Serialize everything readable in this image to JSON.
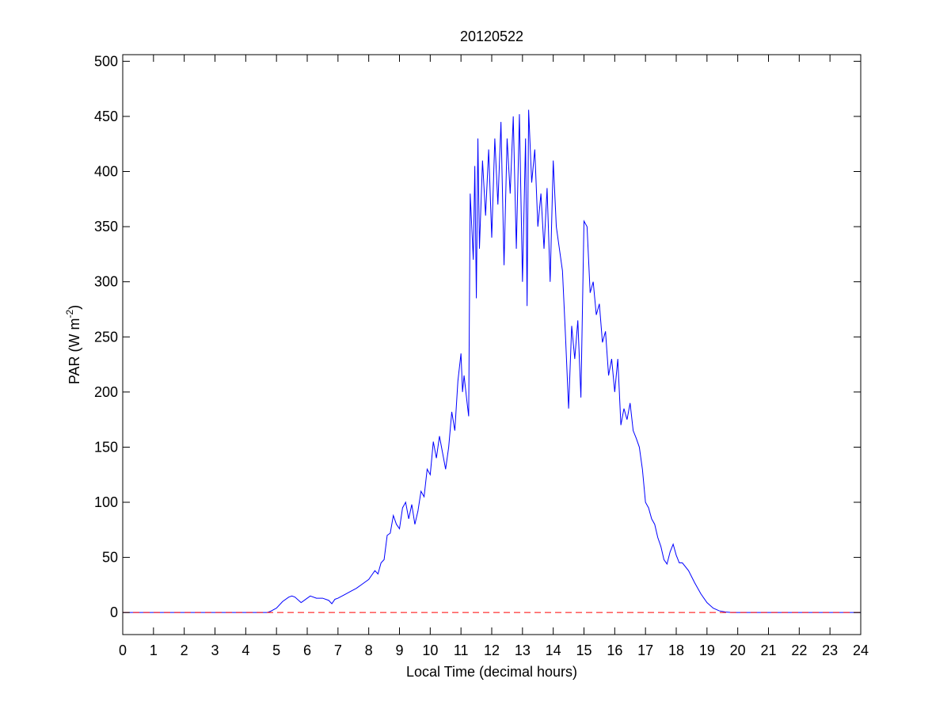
{
  "chart_data": {
    "type": "line",
    "title": "20120522",
    "xlabel": "Local Time (decimal hours)",
    "ylabel": [
      "PAR (W m",
      "-2",
      ")"
    ],
    "xlim": [
      0,
      24
    ],
    "ylim": [
      -20,
      506
    ],
    "xticks": [
      0,
      1,
      2,
      3,
      4,
      5,
      6,
      7,
      8,
      9,
      10,
      11,
      12,
      13,
      14,
      15,
      16,
      17,
      18,
      19,
      20,
      21,
      22,
      23,
      24
    ],
    "yticks": [
      0,
      50,
      100,
      150,
      200,
      250,
      300,
      350,
      400,
      450,
      500
    ],
    "series": [
      {
        "color": "#0000ff",
        "style": "solid",
        "x": [
          0,
          4.7,
          4.8,
          5.0,
          5.2,
          5.4,
          5.5,
          5.6,
          5.8,
          6.0,
          6.1,
          6.3,
          6.5,
          6.7,
          6.8,
          6.9,
          7.0,
          7.2,
          7.4,
          7.6,
          7.8,
          8.0,
          8.1,
          8.2,
          8.3,
          8.4,
          8.5,
          8.6,
          8.7,
          8.8,
          8.9,
          9.0,
          9.1,
          9.2,
          9.3,
          9.4,
          9.5,
          9.6,
          9.7,
          9.8,
          9.9,
          10.0,
          10.1,
          10.2,
          10.3,
          10.4,
          10.5,
          10.6,
          10.7,
          10.8,
          10.9,
          11.0,
          11.05,
          11.1,
          11.2,
          11.25,
          11.3,
          11.4,
          11.45,
          11.5,
          11.55,
          11.6,
          11.7,
          11.8,
          11.9,
          12.0,
          12.1,
          12.2,
          12.3,
          12.4,
          12.5,
          12.6,
          12.7,
          12.8,
          12.9,
          13.0,
          13.1,
          13.15,
          13.2,
          13.3,
          13.4,
          13.5,
          13.6,
          13.7,
          13.8,
          13.9,
          14.0,
          14.1,
          14.2,
          14.3,
          14.4,
          14.5,
          14.6,
          14.7,
          14.8,
          14.9,
          15.0,
          15.1,
          15.2,
          15.3,
          15.4,
          15.5,
          15.6,
          15.7,
          15.8,
          15.9,
          16.0,
          16.1,
          16.2,
          16.3,
          16.4,
          16.5,
          16.6,
          16.7,
          16.8,
          16.9,
          17.0,
          17.1,
          17.2,
          17.3,
          17.4,
          17.5,
          17.6,
          17.7,
          17.8,
          17.9,
          18.0,
          18.1,
          18.2,
          18.4,
          18.6,
          18.8,
          19.0,
          19.2,
          19.4,
          19.6,
          19.8,
          24
        ],
        "values": [
          0,
          0,
          1,
          4,
          10,
          14,
          15,
          14,
          9,
          13,
          15,
          13,
          13,
          11,
          8,
          12,
          13,
          16,
          19,
          22,
          26,
          30,
          34,
          38,
          35,
          45,
          48,
          70,
          72,
          88,
          80,
          76,
          95,
          100,
          85,
          98,
          80,
          92,
          110,
          105,
          130,
          125,
          155,
          140,
          160,
          145,
          130,
          150,
          182,
          165,
          210,
          235,
          200,
          215,
          190,
          178,
          380,
          320,
          405,
          285,
          430,
          330,
          410,
          360,
          420,
          340,
          430,
          370,
          445,
          315,
          430,
          380,
          450,
          330,
          452,
          300,
          430,
          278,
          456,
          390,
          420,
          350,
          380,
          330,
          385,
          300,
          410,
          350,
          330,
          310,
          250,
          185,
          260,
          230,
          265,
          195,
          355,
          350,
          290,
          300,
          270,
          280,
          245,
          255,
          215,
          230,
          200,
          230,
          170,
          185,
          175,
          190,
          165,
          158,
          150,
          130,
          100,
          95,
          85,
          80,
          68,
          60,
          48,
          44,
          55,
          62,
          52,
          45,
          45,
          38,
          27,
          17,
          9,
          4,
          1.5,
          0.5,
          0,
          0
        ]
      },
      {
        "color": "#ff0000",
        "style": "dashed",
        "x": [
          0,
          24
        ],
        "values": [
          0,
          0
        ]
      }
    ]
  }
}
